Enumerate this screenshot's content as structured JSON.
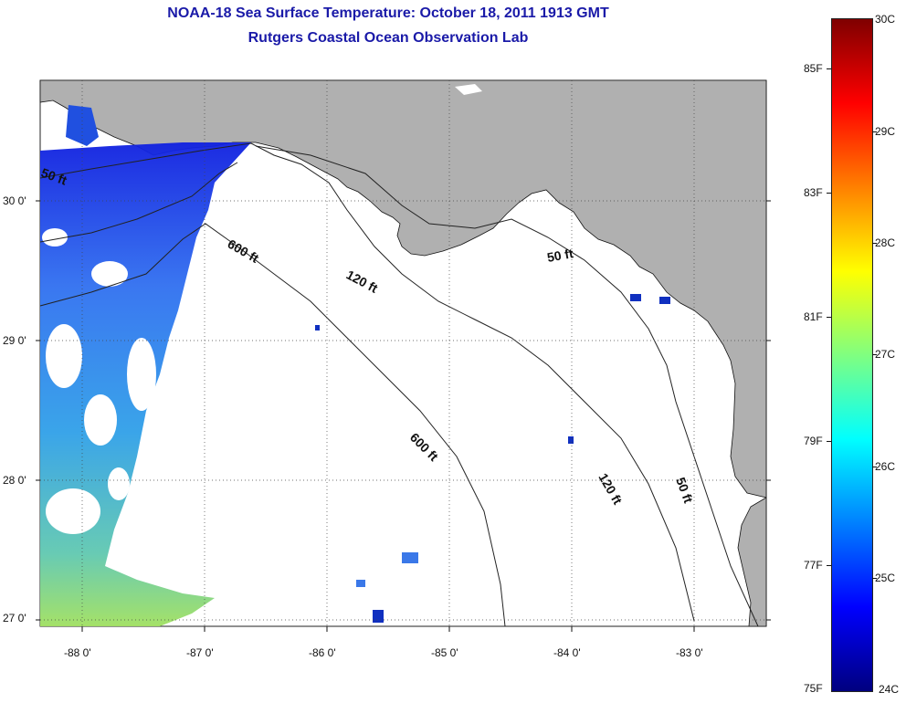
{
  "header": {
    "title": "NOAA-18 Sea Surface Temperature:  October 18, 2011 1913 GMT",
    "subtitle": "Rutgers Coastal Ocean Observation Lab"
  },
  "map": {
    "lat_labels": [
      "30 0'",
      "29 0'",
      "28 0'",
      "27 0'"
    ],
    "lon_labels": [
      "-88 0'",
      "-87 0'",
      "-86 0'",
      "-85 0'",
      "-84 0'",
      "-83 0'"
    ],
    "contour_labels": [
      "50 ft",
      "600 ft",
      "120 ft",
      "50 ft",
      "600 ft",
      "120 ft",
      "50 ft"
    ],
    "colors": {
      "land": "#b0b0b0",
      "ocean": "#ffffff"
    }
  },
  "colorbar": {
    "celsius": [
      "30C",
      "29C",
      "28C",
      "27C",
      "26C",
      "25C",
      "24C"
    ],
    "fahrenheit": [
      "85F",
      "83F",
      "81F",
      "79F",
      "77F",
      "75F"
    ],
    "range_c": [
      24,
      30
    ],
    "colormap": "jet"
  }
}
